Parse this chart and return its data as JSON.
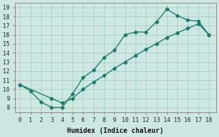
{
  "xlabel": "Humidex (Indice chaleur)",
  "ylabel": "",
  "bg_color": "#cce8e0",
  "line_color": "#1a7a6e",
  "grid_color": "#aaccc4",
  "xlim": [
    -0.5,
    18.7
  ],
  "ylim": [
    7.5,
    19.5
  ],
  "xticks": [
    0,
    1,
    2,
    3,
    4,
    5,
    6,
    7,
    8,
    9,
    10,
    11,
    12,
    13,
    14,
    15,
    16,
    17,
    18
  ],
  "yticks": [
    8,
    9,
    10,
    11,
    12,
    13,
    14,
    15,
    16,
    17,
    18,
    19
  ],
  "curve1_x": [
    0,
    1,
    2,
    3,
    4,
    5,
    6,
    7,
    8,
    9,
    10,
    11,
    12,
    13,
    14,
    15,
    16,
    17,
    18
  ],
  "curve1_y": [
    10.5,
    9.8,
    8.6,
    8.0,
    8.0,
    9.5,
    11.3,
    12.1,
    13.5,
    14.3,
    16.0,
    16.3,
    16.3,
    17.4,
    18.8,
    18.1,
    17.6,
    17.5,
    16.0
  ],
  "curve2_x": [
    0,
    3,
    4,
    5,
    6,
    7,
    8,
    9,
    10,
    11,
    12,
    13,
    14,
    15,
    16,
    17,
    18
  ],
  "curve2_y": [
    10.5,
    9.0,
    8.5,
    9.0,
    10.0,
    10.8,
    11.5,
    12.3,
    13.0,
    13.7,
    14.4,
    15.0,
    15.7,
    16.2,
    16.7,
    17.2,
    16.0
  ],
  "marker_size": 2.5,
  "line_width": 1.0,
  "font_size": 7
}
